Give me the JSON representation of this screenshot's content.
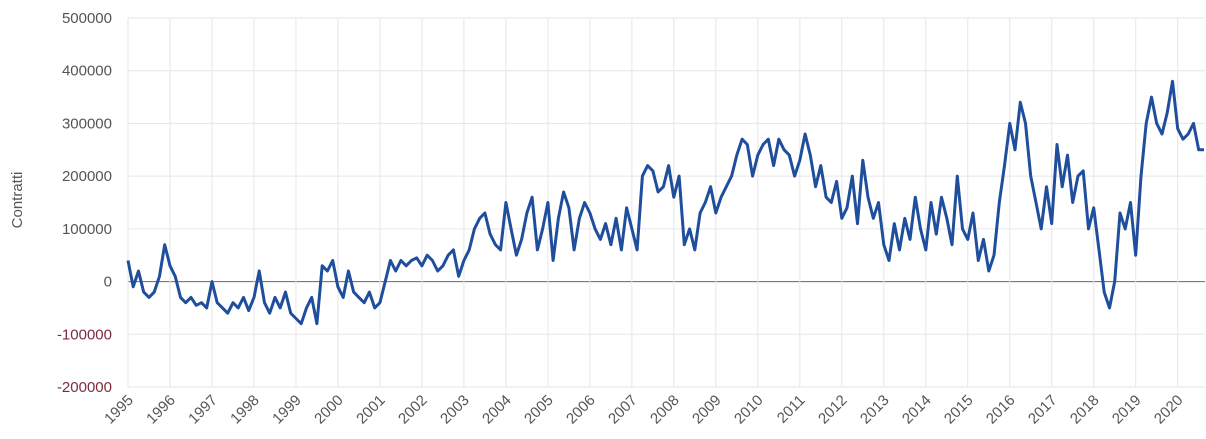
{
  "chart_data": {
    "type": "line",
    "y_label": "Contratti",
    "xlim": [
      1995,
      2020.65
    ],
    "xticks": [
      1995,
      1996,
      1997,
      1998,
      1999,
      2000,
      2001,
      2002,
      2003,
      2004,
      2005,
      2006,
      2007,
      2008,
      2009,
      2010,
      2011,
      2012,
      2013,
      2014,
      2015,
      2016,
      2017,
      2018,
      2019,
      2020
    ],
    "ylim": [
      -200000,
      500000
    ],
    "yticks": [
      -200000,
      -100000,
      0,
      100000,
      200000,
      300000,
      400000,
      500000
    ],
    "grid": true,
    "negative_tick_color": "#7b2d3f",
    "series": [
      {
        "name": "Contratti",
        "color": "#1f4e9c",
        "x": [
          1995,
          1995.125,
          1995.25,
          1995.375,
          1995.5,
          1995.625,
          1995.75,
          1995.875,
          1996,
          1996.125,
          1996.25,
          1996.375,
          1996.5,
          1996.625,
          1996.75,
          1996.875,
          1997,
          1997.125,
          1997.25,
          1997.375,
          1997.5,
          1997.625,
          1997.75,
          1997.875,
          1998,
          1998.125,
          1998.25,
          1998.375,
          1998.5,
          1998.625,
          1998.75,
          1998.875,
          1999,
          1999.125,
          1999.25,
          1999.375,
          1999.5,
          1999.625,
          1999.75,
          1999.875,
          2000,
          2000.125,
          2000.25,
          2000.375,
          2000.5,
          2000.625,
          2000.75,
          2000.875,
          2001,
          2001.125,
          2001.25,
          2001.375,
          2001.5,
          2001.625,
          2001.75,
          2001.875,
          2002,
          2002.125,
          2002.25,
          2002.375,
          2002.5,
          2002.625,
          2002.75,
          2002.875,
          2003,
          2003.125,
          2003.25,
          2003.375,
          2003.5,
          2003.625,
          2003.75,
          2003.875,
          2004,
          2004.125,
          2004.25,
          2004.375,
          2004.5,
          2004.625,
          2004.75,
          2004.875,
          2005,
          2005.125,
          2005.25,
          2005.375,
          2005.5,
          2005.625,
          2005.75,
          2005.875,
          2006,
          2006.125,
          2006.25,
          2006.375,
          2006.5,
          2006.625,
          2006.75,
          2006.875,
          2007,
          2007.125,
          2007.25,
          2007.375,
          2007.5,
          2007.625,
          2007.75,
          2007.875,
          2008,
          2008.125,
          2008.25,
          2008.375,
          2008.5,
          2008.625,
          2008.75,
          2008.875,
          2009,
          2009.125,
          2009.25,
          2009.375,
          2009.5,
          2009.625,
          2009.75,
          2009.875,
          2010,
          2010.125,
          2010.25,
          2010.375,
          2010.5,
          2010.625,
          2010.75,
          2010.875,
          2011,
          2011.125,
          2011.25,
          2011.375,
          2011.5,
          2011.625,
          2011.75,
          2011.875,
          2012,
          2012.125,
          2012.25,
          2012.375,
          2012.5,
          2012.625,
          2012.75,
          2012.875,
          2013,
          2013.125,
          2013.25,
          2013.375,
          2013.5,
          2013.625,
          2013.75,
          2013.875,
          2014,
          2014.125,
          2014.25,
          2014.375,
          2014.5,
          2014.625,
          2014.75,
          2014.875,
          2015,
          2015.125,
          2015.25,
          2015.375,
          2015.5,
          2015.625,
          2015.75,
          2015.875,
          2016,
          2016.125,
          2016.25,
          2016.375,
          2016.5,
          2016.625,
          2016.75,
          2016.875,
          2017,
          2017.125,
          2017.25,
          2017.375,
          2017.5,
          2017.625,
          2017.75,
          2017.875,
          2018,
          2018.125,
          2018.25,
          2018.375,
          2018.5,
          2018.625,
          2018.75,
          2018.875,
          2019,
          2019.125,
          2019.25,
          2019.375,
          2019.5,
          2019.625,
          2019.75,
          2019.875,
          2020,
          2020.125,
          2020.25,
          2020.375,
          2020.5,
          2020.625
        ],
        "values": [
          40000,
          -10000,
          20000,
          -20000,
          -30000,
          -20000,
          10000,
          70000,
          30000,
          10000,
          -30000,
          -40000,
          -30000,
          -45000,
          -40000,
          -50000,
          0,
          -40000,
          -50000,
          -60000,
          -40000,
          -50000,
          -30000,
          -55000,
          -30000,
          20000,
          -40000,
          -60000,
          -30000,
          -50000,
          -20000,
          -60000,
          -70000,
          -80000,
          -50000,
          -30000,
          -80000,
          30000,
          20000,
          40000,
          -10000,
          -30000,
          20000,
          -20000,
          -30000,
          -40000,
          -20000,
          -50000,
          -40000,
          0,
          40000,
          20000,
          40000,
          30000,
          40000,
          45000,
          30000,
          50000,
          40000,
          20000,
          30000,
          50000,
          60000,
          10000,
          40000,
          60000,
          100000,
          120000,
          130000,
          90000,
          70000,
          60000,
          150000,
          100000,
          50000,
          80000,
          130000,
          160000,
          60000,
          100000,
          150000,
          40000,
          120000,
          170000,
          140000,
          60000,
          120000,
          150000,
          130000,
          100000,
          80000,
          110000,
          70000,
          120000,
          60000,
          140000,
          100000,
          60000,
          200000,
          220000,
          210000,
          170000,
          180000,
          220000,
          160000,
          200000,
          70000,
          100000,
          60000,
          130000,
          150000,
          180000,
          130000,
          160000,
          180000,
          200000,
          240000,
          270000,
          260000,
          200000,
          240000,
          260000,
          270000,
          220000,
          270000,
          250000,
          240000,
          200000,
          230000,
          280000,
          240000,
          180000,
          220000,
          160000,
          150000,
          190000,
          120000,
          140000,
          200000,
          110000,
          230000,
          160000,
          120000,
          150000,
          70000,
          40000,
          110000,
          60000,
          120000,
          80000,
          160000,
          100000,
          60000,
          150000,
          90000,
          160000,
          120000,
          70000,
          200000,
          100000,
          80000,
          130000,
          40000,
          80000,
          20000,
          50000,
          150000,
          220000,
          300000,
          250000,
          340000,
          300000,
          200000,
          150000,
          100000,
          180000,
          110000,
          260000,
          180000,
          240000,
          150000,
          200000,
          210000,
          100000,
          140000,
          60000,
          -20000,
          -50000,
          0,
          130000,
          100000,
          150000,
          50000,
          200000,
          300000,
          350000,
          300000,
          280000,
          320000,
          380000,
          290000,
          270000,
          280000,
          300000,
          250000,
          250000
        ]
      }
    ]
  }
}
